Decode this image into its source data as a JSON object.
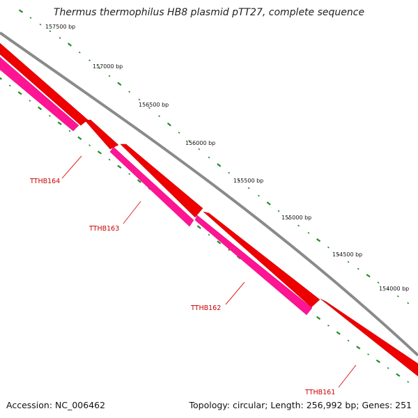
{
  "title": "Thermus thermophilus HB8 plasmid pTT27, complete sequence",
  "colors": {
    "backbone": "#8a8a8a",
    "forward_gene": "#ee0000",
    "reverse_gene": "#ff1493",
    "tick": "#228b22",
    "gene_label": "#cc0000",
    "leader_line": "#dd2222"
  },
  "scale_labels": [
    "157500 bp",
    "157000 bp",
    "156500 bp",
    "156000 bp",
    "155500 bp",
    "155000 bp",
    "154500 bp",
    "154000 bp"
  ],
  "genes": [
    {
      "name": "TTHB161",
      "strand": "forward"
    },
    {
      "name": "TTHB162",
      "strand": "reverse"
    },
    {
      "name": "TTHB163",
      "strand": "reverse"
    },
    {
      "name": "TTHB164",
      "strand": "reverse"
    }
  ],
  "footer": {
    "accession": "Accession: NC_006462",
    "summary": "Topology: circular; Length: 256,992 bp; Genes: 251"
  }
}
